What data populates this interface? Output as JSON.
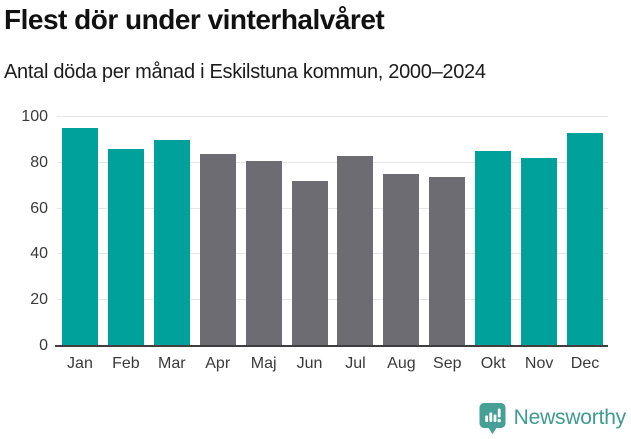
{
  "header": {
    "title": "Flest dör under vinterhalvåret",
    "subtitle": "Antal döda per månad i Eskilstuna kommun, 2000–2024"
  },
  "chart_data": {
    "type": "bar",
    "title": "Flest dör under vinterhalvåret",
    "subtitle": "Antal döda per månad i Eskilstuna kommun, 2000–2024",
    "categories": [
      "Jan",
      "Feb",
      "Mar",
      "Apr",
      "Maj",
      "Jun",
      "Jul",
      "Aug",
      "Sep",
      "Okt",
      "Nov",
      "Dec"
    ],
    "values": [
      95,
      86,
      90,
      84,
      81,
      72,
      83,
      75,
      74,
      85,
      82,
      93
    ],
    "highlighted": [
      true,
      true,
      true,
      false,
      false,
      false,
      false,
      false,
      false,
      true,
      true,
      true
    ],
    "xlabel": "",
    "ylabel": "",
    "ylim": [
      0,
      100
    ],
    "yticks": [
      0,
      20,
      40,
      60,
      80,
      100
    ],
    "grid": "horizontal",
    "legend": "none",
    "colors": {
      "highlight": "#00a19a",
      "muted": "#6d6c72",
      "gridline": "#e6e6e6",
      "axis": "#3f3f3f",
      "tick_label": "#3a3a3a"
    }
  },
  "footer": {
    "brand": "Newsworthy",
    "brand_color": "#3f9a91",
    "logo_color": "#46a095",
    "logo_icon": "bar-chart-speech-bubble-icon"
  }
}
